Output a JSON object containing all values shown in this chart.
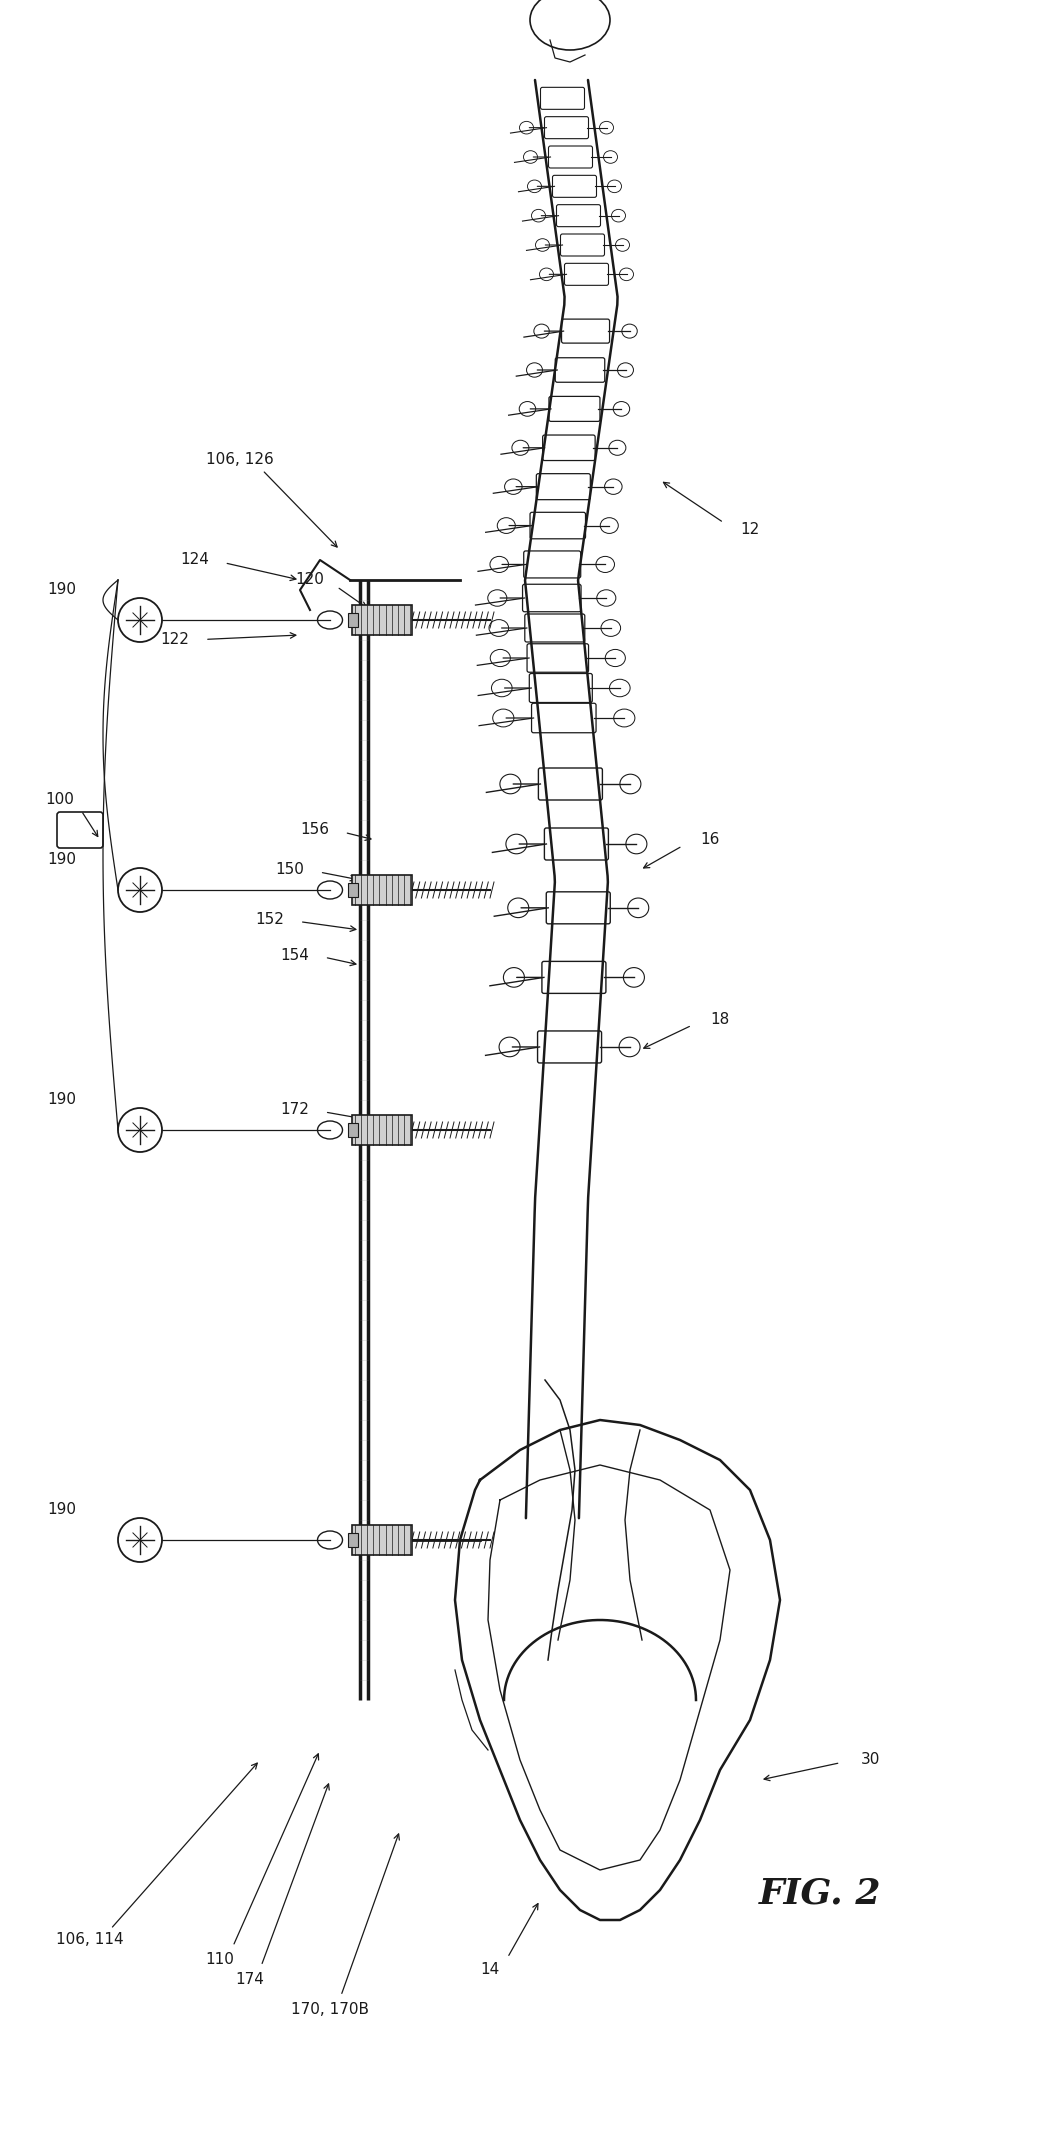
{
  "fig_label": "FIG. 2",
  "background_color": "#ffffff",
  "line_color": "#1a1a1a",
  "figsize": [
    10.57,
    21.52
  ],
  "dpi": 100,
  "spine_color": "#2a2a2a",
  "hardware_color": "#444444",
  "label_fontsize": 11
}
